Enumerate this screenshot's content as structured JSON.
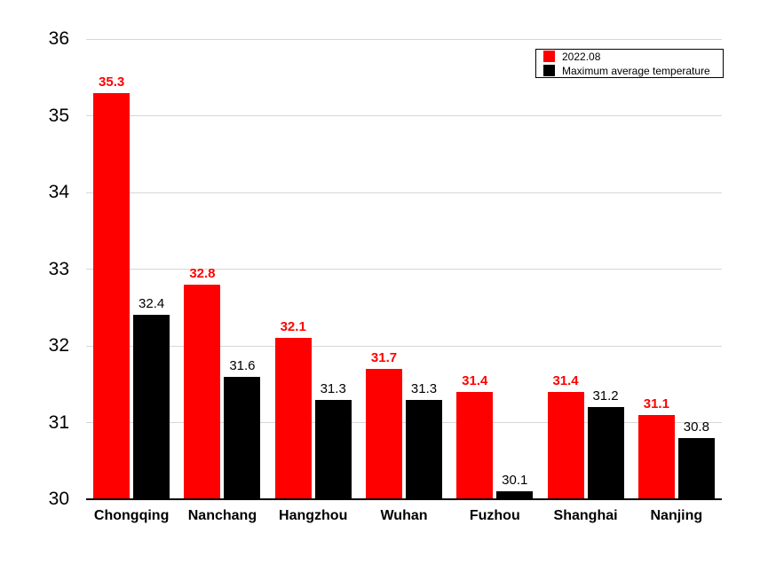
{
  "chart_data": {
    "type": "bar",
    "title": "",
    "xlabel": "",
    "ylabel": "",
    "categories": [
      "Chongqing",
      "Nanchang",
      "Hangzhou",
      "Wuhan",
      "Fuzhou",
      "Shanghai",
      "Nanjing"
    ],
    "series": [
      {
        "name": "2022.08",
        "color": "#ff0000",
        "values": [
          35.3,
          32.8,
          32.1,
          31.7,
          31.4,
          31.4,
          31.1
        ]
      },
      {
        "name": "Maximum average temperature",
        "color": "#000000",
        "values": [
          32.4,
          31.6,
          31.3,
          31.3,
          30.1,
          31.2,
          30.8
        ]
      }
    ],
    "ylim": [
      30,
      36
    ],
    "yticks": [
      30,
      31,
      32,
      33,
      34,
      35,
      36
    ],
    "grid": true,
    "legend_position": "top-right",
    "value_labels": true
  }
}
